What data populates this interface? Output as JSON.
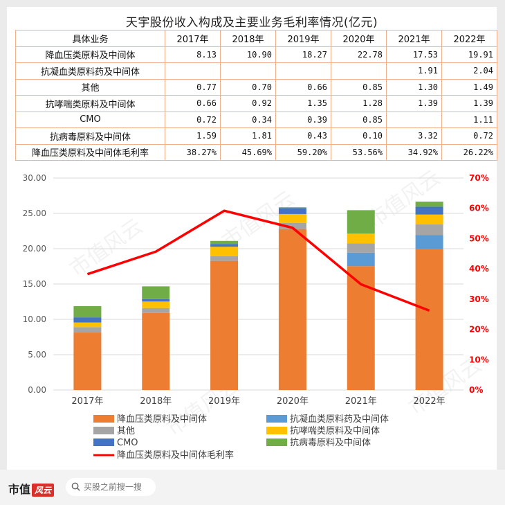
{
  "title": "天宇股份收入构成及主要业务毛利率情况(亿元)",
  "table": {
    "header": [
      "具体业务",
      "2017年",
      "2018年",
      "2019年",
      "2020年",
      "2021年",
      "2022年"
    ],
    "rows": [
      [
        "降血压类原料及中间体",
        "8.13",
        "10.90",
        "18.27",
        "22.78",
        "17.53",
        "19.91"
      ],
      [
        "抗凝血类原料药及中间体",
        "",
        "",
        "",
        "",
        "1.91",
        "2.04"
      ],
      [
        "其他",
        "0.77",
        "0.70",
        "0.66",
        "0.85",
        "1.30",
        "1.49"
      ],
      [
        "抗哮喘类原料及中间体",
        "0.66",
        "0.92",
        "1.35",
        "1.28",
        "1.39",
        "1.39"
      ],
      [
        "CMO",
        "0.72",
        "0.34",
        "0.39",
        "0.85",
        "",
        "1.11"
      ],
      [
        "抗病毒原料及中间体",
        "1.59",
        "1.81",
        "0.43",
        "0.10",
        "3.32",
        "0.72"
      ],
      [
        "降血压类原料及中间体毛利率",
        "38.27%",
        "45.69%",
        "59.20%",
        "53.56%",
        "34.92%",
        "26.22%"
      ]
    ]
  },
  "chart_data": {
    "type": "bar",
    "stacked": true,
    "categories": [
      "2017年",
      "2018年",
      "2019年",
      "2020年",
      "2021年",
      "2022年"
    ],
    "series": [
      {
        "name": "降血压类原料及中间体",
        "color": "#ed7d31",
        "values": [
          8.13,
          10.9,
          18.27,
          22.78,
          17.53,
          19.91
        ]
      },
      {
        "name": "抗凝血类原料药及中间体",
        "color": "#5b9bd5",
        "values": [
          0,
          0,
          0,
          0,
          1.91,
          2.04
        ]
      },
      {
        "name": "其他",
        "color": "#a5a5a5",
        "values": [
          0.77,
          0.7,
          0.66,
          0.85,
          1.3,
          1.49
        ]
      },
      {
        "name": "抗哮喘类原料及中间体",
        "color": "#ffc000",
        "values": [
          0.66,
          0.92,
          1.35,
          1.28,
          1.39,
          1.39
        ]
      },
      {
        "name": "CMO",
        "color": "#4472c4",
        "values": [
          0.72,
          0.34,
          0.39,
          0.85,
          0,
          1.11
        ]
      },
      {
        "name": "抗病毒原料及中间体",
        "color": "#70ad47",
        "values": [
          1.59,
          1.81,
          0.43,
          0.1,
          3.32,
          0.72
        ]
      }
    ],
    "line": {
      "name": "降血压类原料及中间体毛利率",
      "color": "#ff0000",
      "values": [
        38.27,
        45.69,
        59.2,
        53.56,
        34.92,
        26.22
      ]
    },
    "ylim": [
      0,
      30
    ],
    "yticks": [
      "0.00",
      "5.00",
      "10.00",
      "15.00",
      "20.00",
      "25.00",
      "30.00"
    ],
    "y2lim": [
      0,
      70
    ],
    "y2ticks": [
      "0%",
      "10%",
      "20%",
      "30%",
      "40%",
      "50%",
      "60%",
      "70%"
    ],
    "grid": true,
    "legend_position": "bottom"
  },
  "footer": {
    "brand": "市值",
    "brand_mark": "风云",
    "search_placeholder": "买股之前搜一搜"
  },
  "watermark": "市值风云"
}
